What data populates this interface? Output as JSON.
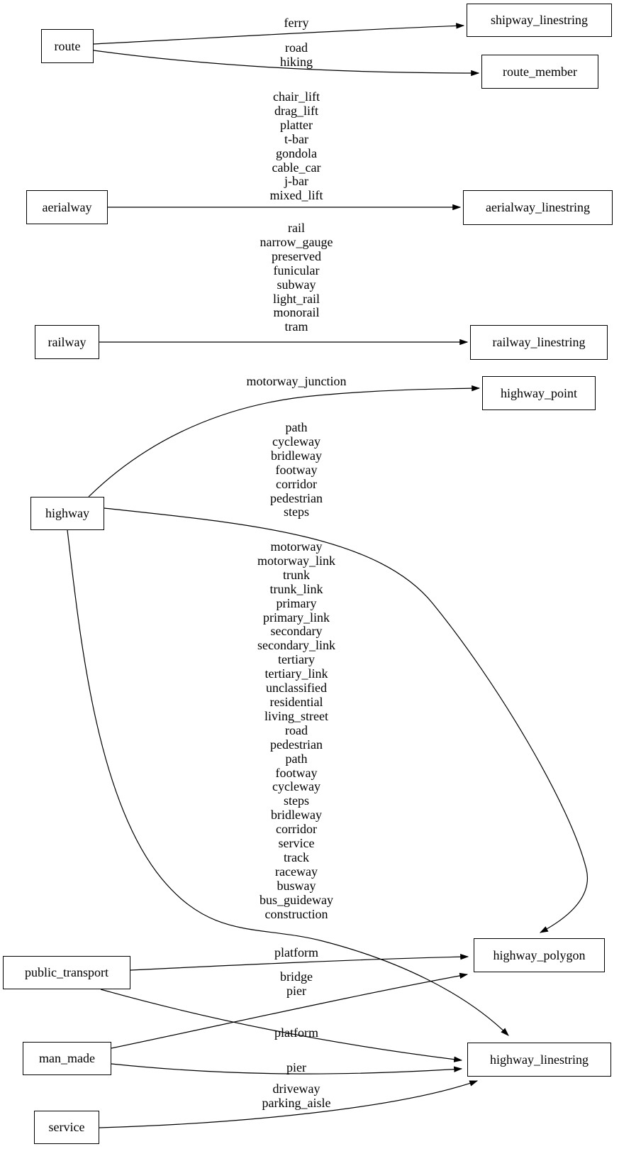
{
  "diagram_type": "graphviz-style directed graph (OSM tag to table mapping)",
  "colors": {
    "background": "#ffffff",
    "node_fill": "#ffffff",
    "node_border": "#000000",
    "edge_stroke": "#000000",
    "text": "#000000"
  },
  "nodes": {
    "route": {
      "label": "route"
    },
    "aerialway": {
      "label": "aerialway"
    },
    "railway": {
      "label": "railway"
    },
    "highway": {
      "label": "highway"
    },
    "public_transport": {
      "label": "public_transport"
    },
    "man_made": {
      "label": "man_made"
    },
    "service": {
      "label": "service"
    },
    "shipway_linestring": {
      "label": "shipway_linestring"
    },
    "route_member": {
      "label": "route_member"
    },
    "aerialway_linestring": {
      "label": "aerialway_linestring"
    },
    "railway_linestring": {
      "label": "railway_linestring"
    },
    "highway_point": {
      "label": "highway_point"
    },
    "highway_polygon": {
      "label": "highway_polygon"
    },
    "highway_linestring": {
      "label": "highway_linestring"
    }
  },
  "edges": [
    {
      "from": "route",
      "to": "shipway_linestring",
      "labels": [
        "ferry"
      ]
    },
    {
      "from": "route",
      "to": "route_member",
      "labels": [
        "road",
        "hiking"
      ]
    },
    {
      "from": "aerialway",
      "to": "aerialway_linestring",
      "labels": [
        "chair_lift",
        "drag_lift",
        "platter",
        "t-bar",
        "gondola",
        "cable_car",
        "j-bar",
        "mixed_lift"
      ]
    },
    {
      "from": "railway",
      "to": "railway_linestring",
      "labels": [
        "rail",
        "narrow_gauge",
        "preserved",
        "funicular",
        "subway",
        "light_rail",
        "monorail",
        "tram"
      ]
    },
    {
      "from": "highway",
      "to": "highway_point",
      "labels": [
        "motorway_junction"
      ]
    },
    {
      "from": "highway",
      "to": "highway_polygon",
      "labels": [
        "path",
        "cycleway",
        "bridleway",
        "footway",
        "corridor",
        "pedestrian",
        "steps"
      ]
    },
    {
      "from": "highway",
      "to": "highway_linestring",
      "labels": [
        "motorway",
        "motorway_link",
        "trunk",
        "trunk_link",
        "primary",
        "primary_link",
        "secondary",
        "secondary_link",
        "tertiary",
        "tertiary_link",
        "unclassified",
        "residential",
        "living_street",
        "road",
        "pedestrian",
        "path",
        "footway",
        "cycleway",
        "steps",
        "bridleway",
        "corridor",
        "service",
        "track",
        "raceway",
        "busway",
        "bus_guideway",
        "construction"
      ]
    },
    {
      "from": "public_transport",
      "to": "highway_polygon",
      "labels": [
        "platform"
      ]
    },
    {
      "from": "man_made",
      "to": "highway_polygon",
      "labels": [
        "bridge",
        "pier"
      ]
    },
    {
      "from": "public_transport",
      "to": "highway_linestring",
      "labels": [
        "platform"
      ]
    },
    {
      "from": "man_made",
      "to": "highway_linestring",
      "labels": [
        "pier"
      ]
    },
    {
      "from": "service",
      "to": "highway_linestring",
      "labels": [
        "driveway",
        "parking_aisle"
      ]
    }
  ]
}
